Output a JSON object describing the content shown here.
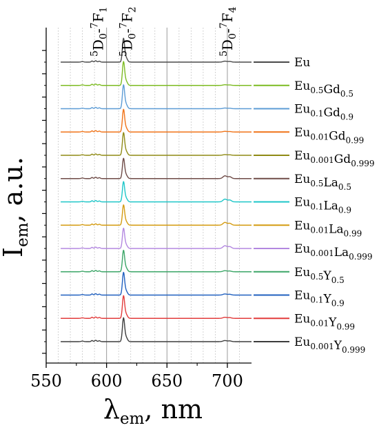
{
  "chart_data": {
    "type": "line",
    "title": "",
    "xlabel": {
      "main": "λ",
      "sub": "em",
      "tail": ", nm"
    },
    "ylabel": {
      "main": "I",
      "sub": "em",
      "tail": ", a.u."
    },
    "xlim": [
      550,
      720
    ],
    "x_ticks": [
      550,
      600,
      650,
      700
    ],
    "x_minor_ticks": [
      575,
      625,
      675
    ],
    "grid": "vertical lines",
    "major_grid": [
      600,
      650,
      700
    ],
    "minor_grid": [
      560,
      570,
      580,
      590,
      610,
      620,
      630,
      640,
      660,
      670,
      680,
      690,
      710
    ],
    "y_axis_ticks_shown": true,
    "y_tick_labels_shown": false,
    "legend_placement": "right",
    "stacking": "vertically offset, top to bottom",
    "band_labels": [
      {
        "id": "f1",
        "x": 593,
        "pre_sup": "5",
        "base": "D",
        "sub": "0",
        "mid": "-",
        "sup2": "7",
        "base2": "F",
        "sub2": "1"
      },
      {
        "id": "f2",
        "x": 617,
        "pre_sup": "5",
        "base": "D",
        "sub": "0",
        "mid": "-",
        "sup2": "7",
        "base2": "F",
        "sub2": "2"
      },
      {
        "id": "f4",
        "x": 700,
        "pre_sup": "5",
        "base": "D",
        "sub": "0",
        "mid": "-",
        "sup2": "7",
        "base2": "F",
        "sub2": "4"
      }
    ],
    "series": [
      {
        "name": "Eu",
        "legend": [
          [
            "Eu",
            ""
          ]
        ],
        "color": "#4a4a4a",
        "peak_height": 1.0,
        "f4_height": 0.07
      },
      {
        "name": "Eu0.5Gd0.5",
        "legend": [
          [
            "Eu",
            "0.5"
          ],
          [
            "Gd",
            "0.5"
          ]
        ],
        "color": "#7cbb21",
        "peak_height": 1.0,
        "f4_height": 0.05
      },
      {
        "name": "Eu0.1Gd0.9",
        "legend": [
          [
            "Eu",
            "0.1"
          ],
          [
            "Gd",
            "0.9"
          ]
        ],
        "color": "#5b9bd5",
        "peak_height": 1.0,
        "f4_height": 0.05
      },
      {
        "name": "Eu0.01Gd0.99",
        "legend": [
          [
            "Eu",
            "0.01"
          ],
          [
            "Gd",
            "0.99"
          ]
        ],
        "color": "#f07318",
        "peak_height": 0.95,
        "f4_height": 0.05
      },
      {
        "name": "Eu0.001Gd0.999",
        "legend": [
          [
            "Eu",
            "0.001"
          ],
          [
            "Gd",
            "0.999"
          ]
        ],
        "color": "#8f8a14",
        "peak_height": 0.95,
        "f4_height": 0.05
      },
      {
        "name": "Eu0.5La0.5",
        "legend": [
          [
            "Eu",
            "0.5"
          ],
          [
            "La",
            "0.5"
          ]
        ],
        "color": "#6e4a46",
        "peak_height": 0.85,
        "f4_height": 0.2
      },
      {
        "name": "Eu0.1La0.9",
        "legend": [
          [
            "Eu",
            "0.1"
          ],
          [
            "La",
            "0.9"
          ]
        ],
        "color": "#1cc6c8",
        "peak_height": 0.85,
        "f4_height": 0.2
      },
      {
        "name": "Eu0.01La0.99",
        "legend": [
          [
            "Eu",
            "0.01"
          ],
          [
            "La",
            "0.99"
          ]
        ],
        "color": "#d49b10",
        "peak_height": 0.85,
        "f4_height": 0.2
      },
      {
        "name": "Eu0.001La0.999",
        "legend": [
          [
            "Eu",
            "0.001"
          ],
          [
            "La",
            "0.999"
          ]
        ],
        "color": "#b387e0",
        "peak_height": 0.85,
        "f4_height": 0.2
      },
      {
        "name": "Eu0.5Y0.5",
        "legend": [
          [
            "Eu",
            "0.5"
          ],
          [
            "Y",
            "0.5"
          ]
        ],
        "color": "#3aa566",
        "peak_height": 0.9,
        "f4_height": 0.08
      },
      {
        "name": "Eu0.1Y0.9",
        "legend": [
          [
            "Eu",
            "0.1"
          ],
          [
            "Y",
            "0.9"
          ]
        ],
        "color": "#1f5fbf",
        "peak_height": 0.95,
        "f4_height": 0.08
      },
      {
        "name": "Eu0.01Y0.99",
        "legend": [
          [
            "Eu",
            "0.01"
          ],
          [
            "Y",
            "0.99"
          ]
        ],
        "color": "#e23b3b",
        "peak_height": 0.95,
        "f4_height": 0.08
      },
      {
        "name": "Eu0.001Y0.999",
        "legend": [
          [
            "Eu",
            "0.001"
          ],
          [
            "Y",
            "0.999"
          ]
        ],
        "color": "#3c3c3c",
        "peak_height": 1.0,
        "f4_height": 0.08
      }
    ]
  }
}
